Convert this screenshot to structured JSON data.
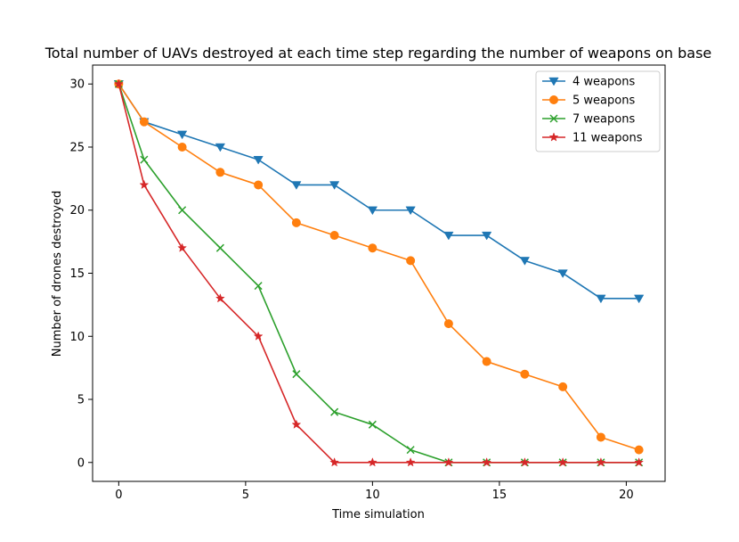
{
  "chart_data": {
    "type": "line",
    "title": "Total number of UAVs destroyed at each time step regarding the number of weapons on base",
    "xlabel": "Time simulation",
    "ylabel": "Number of drones destroyed",
    "xlim": [
      -1.03,
      21.53
    ],
    "ylim": [
      -1.5,
      31.5
    ],
    "xticks": [
      0,
      5,
      10,
      15,
      20
    ],
    "yticks": [
      0,
      5,
      10,
      15,
      20,
      25,
      30
    ],
    "grid": false,
    "legend_position": "top-right",
    "x": [
      0,
      1,
      2.5,
      4,
      5.5,
      7,
      8.5,
      10,
      11.5,
      13,
      14.5,
      16,
      17.5,
      19,
      20.5
    ],
    "series": [
      {
        "name": "4 weapons",
        "color": "#1f77b4",
        "marker": "triangle-down",
        "values": [
          30,
          27,
          26,
          25,
          24,
          22,
          22,
          20,
          20,
          18,
          18,
          16,
          15,
          13,
          13
        ]
      },
      {
        "name": "5 weapons",
        "color": "#ff7f0e",
        "marker": "circle",
        "values": [
          30,
          27,
          25,
          23,
          22,
          19,
          18,
          17,
          16,
          11,
          8,
          7,
          6,
          2,
          1
        ]
      },
      {
        "name": "7 weapons",
        "color": "#2ca02c",
        "marker": "x",
        "values": [
          30,
          24,
          20,
          17,
          14,
          7,
          4,
          3,
          1,
          0,
          0,
          0,
          0,
          0,
          0
        ]
      },
      {
        "name": "11 weapons",
        "color": "#d62728",
        "marker": "star",
        "values": [
          30,
          22,
          17,
          13,
          10,
          3,
          0,
          0,
          0,
          0,
          0,
          0,
          0,
          0,
          0
        ]
      }
    ]
  }
}
